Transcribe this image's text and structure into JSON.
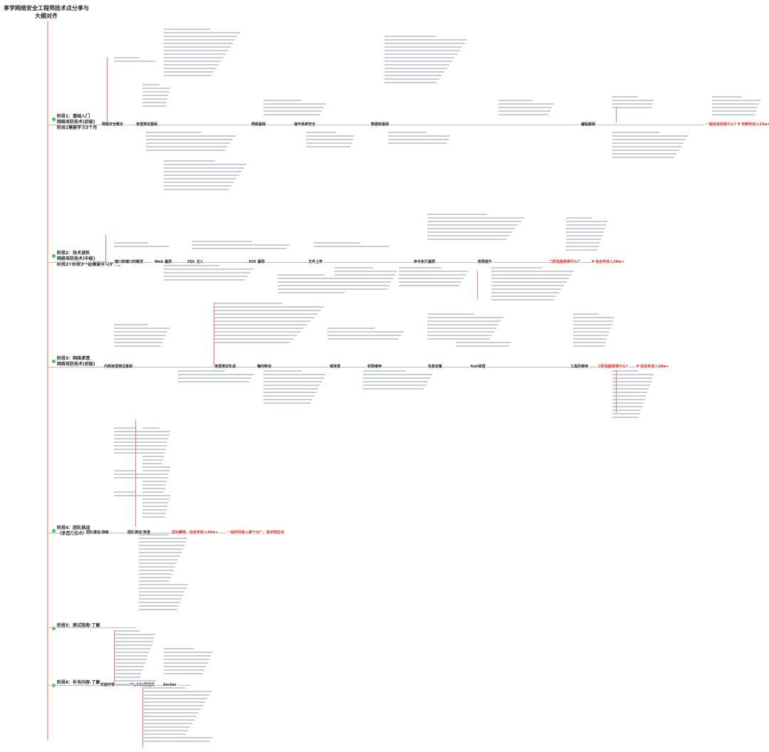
{
  "title": "享学网络安全工程师技术点分享与大纲对齐",
  "stages": [
    {
      "label": "阶段1：基础入门\n网络攻防技术(初级)\n阶段1需要学习3个月",
      "nodes": [
        "网络安全概论",
        "渗透测试基础",
        "网络基础",
        "操作系统安全",
        "数据库基础",
        "编程基础"
      ],
      "gain_q": "一般综合收获什么?",
      "gain_a": "¥ 年薪年收入15w+"
    },
    {
      "label": "阶段2：技术进阶\n网络攻防技术(中级)\n阶段2+阶段3一起需要学习3个月",
      "nodes": [
        "端口和端口的概述",
        "Web 漏洞",
        "SQL 注入",
        "XSS 漏洞",
        "文件上传",
        "命令执行漏洞",
        "权限提升"
      ],
      "gain_q": "二阶段能获得什么?",
      "gain_a": "¥ 综合年收入20w+"
    },
    {
      "label": "阶段3：网络渗透\n网络攻防技术(初级)",
      "nodes": [
        "内网渗透测试基础",
        "渗透测试实战",
        "横向移动",
        "域渗透",
        "权限维持",
        "信息收集",
        "Kali渗透",
        "工具的使用"
      ],
      "gain_q": "三阶段能获得什么?",
      "gain_a": "¥ 综合年收入30w+"
    },
    {
      "label": "阶段4：团队挑战\n（渗透方技术）",
      "nodes": [
        "团队建设/演练",
        "团队测试/渗透"
      ],
      "gain_q": "成功拿结，综合年收入40w+",
      "gain_a": "一段时间进入某个大厂，技术岗位也"
    },
    {
      "label": "阶段5：面试指南·了解",
      "nodes": []
    },
    {
      "label": "阶段6：补充内容·了解",
      "nodes": [
        "实验环境",
        "MySQL数据库",
        "docker"
      ]
    }
  ]
}
